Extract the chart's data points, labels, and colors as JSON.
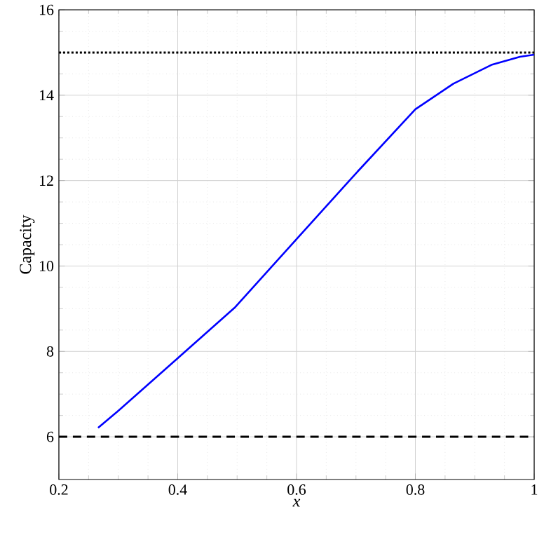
{
  "chart_data": {
    "type": "line",
    "xlabel": "x",
    "ylabel": "Capacity",
    "x": [
      0.266,
      0.3,
      0.4,
      0.497,
      0.6,
      0.689,
      0.7,
      0.8,
      0.864,
      0.928,
      0.976,
      1.0
    ],
    "series": [
      {
        "color": "#0000ff",
        "values": [
          6.21,
          6.61,
          7.84,
          9.04,
          10.63,
          12.0,
          12.17,
          13.67,
          14.27,
          14.71,
          14.9,
          14.95
        ]
      }
    ],
    "xlim": [
      0.2,
      1.0
    ],
    "ylim": [
      5,
      16
    ],
    "xticks": [
      0.2,
      0.4,
      0.6,
      0.8,
      1
    ],
    "yticks": [
      6,
      8,
      10,
      12,
      14,
      16
    ],
    "ref_lines": [
      {
        "axis": "y",
        "value": 15,
        "color": "#000000",
        "line_style": "dotted"
      },
      {
        "axis": "y",
        "value": 6,
        "color": "#000000",
        "line_style": "dashed"
      }
    ],
    "grid": true,
    "marker": "none",
    "line_style": "solid"
  }
}
